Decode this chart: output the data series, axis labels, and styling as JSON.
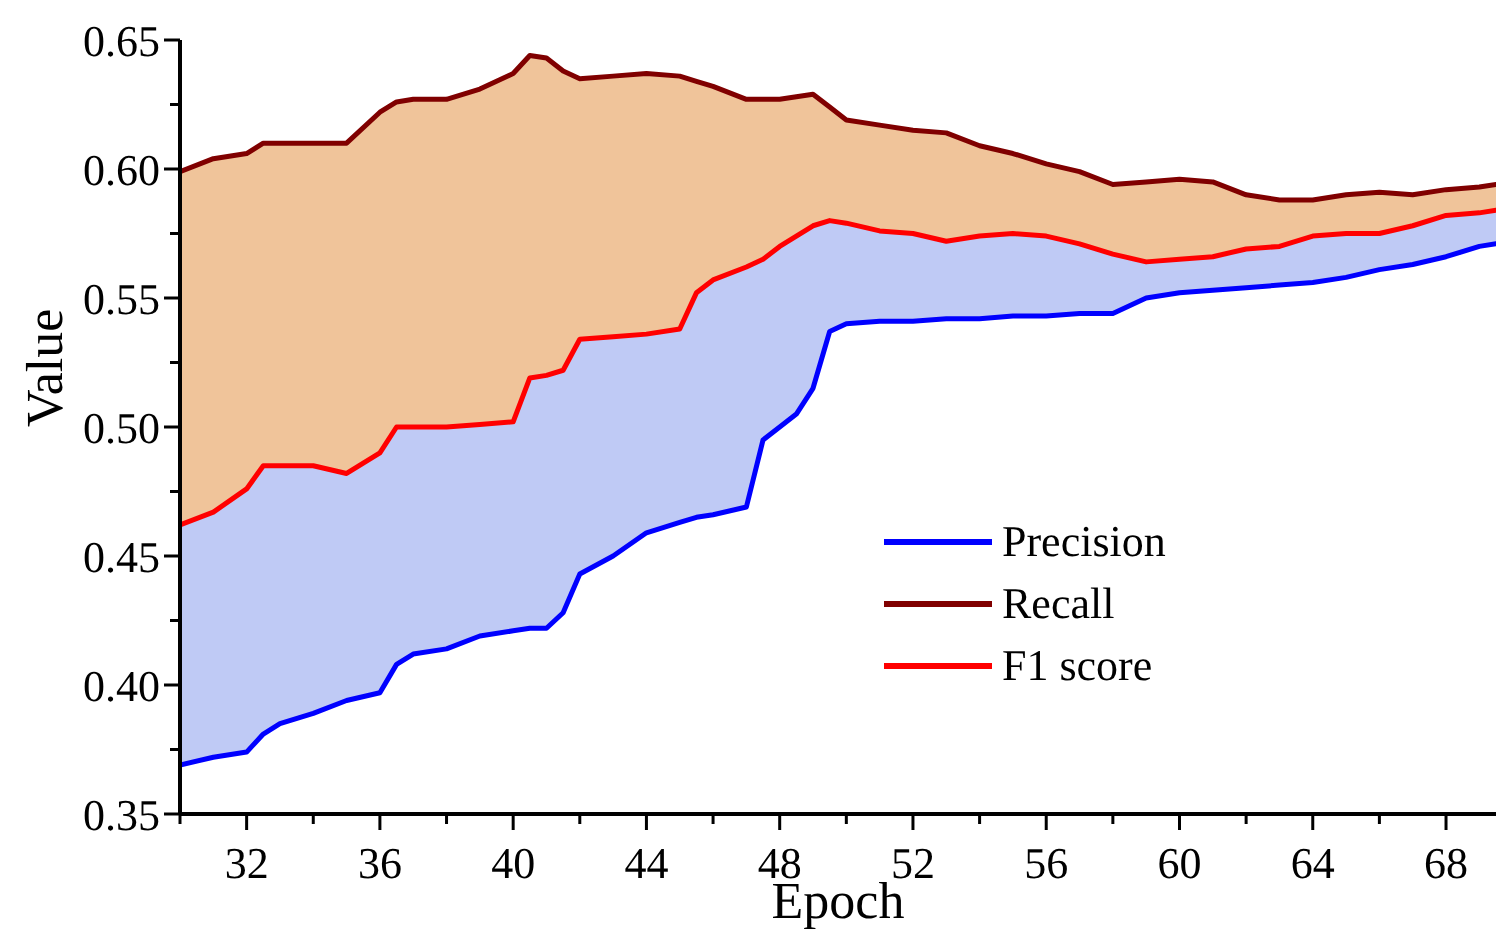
{
  "chart_data": {
    "type": "line",
    "xlabel": "Epoch",
    "ylabel": "Value",
    "x": [
      30,
      31,
      32,
      32.5,
      33,
      34,
      35,
      36,
      36.5,
      37,
      38,
      39,
      40,
      40.5,
      41,
      41.5,
      42,
      43,
      44,
      45,
      45.5,
      46,
      47,
      47.5,
      48,
      48.5,
      49,
      49.5,
      50,
      51,
      52,
      53,
      54,
      55,
      56,
      57,
      58,
      59,
      60,
      61,
      62,
      63,
      64,
      65,
      66,
      67,
      68,
      69,
      69.5
    ],
    "series": [
      {
        "name": "Precision",
        "color": "#0000ff",
        "values": [
          0.369,
          0.372,
          0.374,
          0.381,
          0.385,
          0.389,
          0.394,
          0.397,
          0.408,
          0.412,
          0.414,
          0.419,
          0.421,
          0.422,
          0.422,
          0.428,
          0.443,
          0.45,
          0.459,
          0.463,
          0.465,
          0.466,
          0.469,
          0.495,
          0.5,
          0.505,
          0.515,
          0.537,
          0.54,
          0.541,
          0.541,
          0.542,
          0.542,
          0.543,
          0.543,
          0.544,
          0.544,
          0.55,
          0.552,
          0.553,
          0.554,
          0.555,
          0.556,
          0.558,
          0.561,
          0.563,
          0.566,
          0.57,
          0.571
        ]
      },
      {
        "name": "Recall",
        "color": "#800000",
        "values": [
          0.599,
          0.604,
          0.606,
          0.61,
          0.61,
          0.61,
          0.61,
          0.622,
          0.626,
          0.627,
          0.627,
          0.631,
          0.637,
          0.644,
          0.643,
          0.638,
          0.635,
          0.636,
          0.637,
          0.636,
          0.634,
          0.632,
          0.627,
          0.627,
          0.627,
          0.628,
          0.629,
          0.624,
          0.619,
          0.617,
          0.615,
          0.614,
          0.609,
          0.606,
          0.602,
          0.599,
          0.594,
          0.595,
          0.596,
          0.595,
          0.59,
          0.588,
          0.588,
          0.59,
          0.591,
          0.59,
          0.592,
          0.593,
          0.594
        ],
        "upper": [
          0.599,
          0.604,
          0.606,
          0.61,
          0.61,
          0.61,
          0.61,
          0.622,
          0.626,
          0.627,
          0.627,
          0.631,
          0.637,
          0.644,
          0.643,
          0.638,
          0.635,
          0.636,
          0.637,
          0.636,
          0.634,
          0.632,
          0.627,
          0.627,
          0.627,
          0.628,
          0.629,
          0.624,
          0.619,
          0.617,
          0.615,
          0.614,
          0.609,
          0.606,
          0.602,
          0.599,
          0.594,
          0.595,
          0.596,
          0.595,
          0.59,
          0.588,
          0.588,
          0.59,
          0.591,
          0.59,
          0.592,
          0.593,
          0.594
        ],
        "lower": [
          0.462,
          0.467,
          0.476,
          0.485,
          0.485,
          0.485,
          0.482,
          0.49,
          0.5,
          0.5,
          0.5,
          0.501,
          0.502,
          0.519,
          0.52,
          0.522,
          0.534,
          0.535,
          0.536,
          0.538,
          0.552,
          0.557,
          0.562,
          0.565,
          0.57,
          0.574,
          0.578,
          0.58,
          0.579,
          0.576,
          0.575,
          0.572,
          0.574,
          0.575,
          0.574,
          0.571,
          0.567,
          0.564,
          0.565,
          0.566,
          0.569,
          0.57,
          0.574,
          0.575,
          0.575,
          0.578,
          0.582,
          0.583,
          0.584
        ]
      },
      {
        "name": "F1 score",
        "color": "#ff0000",
        "values": [
          0.462,
          0.467,
          0.476,
          0.485,
          0.485,
          0.485,
          0.482,
          0.49,
          0.5,
          0.5,
          0.5,
          0.501,
          0.502,
          0.519,
          0.52,
          0.522,
          0.534,
          0.535,
          0.536,
          0.538,
          0.552,
          0.557,
          0.562,
          0.565,
          0.57,
          0.574,
          0.578,
          0.58,
          0.579,
          0.576,
          0.575,
          0.572,
          0.574,
          0.575,
          0.574,
          0.571,
          0.567,
          0.564,
          0.565,
          0.566,
          0.569,
          0.57,
          0.574,
          0.575,
          0.575,
          0.578,
          0.582,
          0.583,
          0.584
        ],
        "upper": [
          0.462,
          0.467,
          0.476,
          0.485,
          0.485,
          0.485,
          0.482,
          0.49,
          0.5,
          0.5,
          0.5,
          0.501,
          0.502,
          0.519,
          0.52,
          0.522,
          0.534,
          0.535,
          0.536,
          0.538,
          0.552,
          0.557,
          0.562,
          0.565,
          0.57,
          0.574,
          0.578,
          0.58,
          0.579,
          0.576,
          0.575,
          0.572,
          0.574,
          0.575,
          0.574,
          0.571,
          0.567,
          0.564,
          0.565,
          0.566,
          0.569,
          0.57,
          0.574,
          0.575,
          0.575,
          0.578,
          0.582,
          0.583,
          0.584
        ],
        "lower": [
          0.369,
          0.372,
          0.374,
          0.381,
          0.385,
          0.389,
          0.394,
          0.397,
          0.408,
          0.412,
          0.414,
          0.419,
          0.421,
          0.422,
          0.422,
          0.428,
          0.443,
          0.45,
          0.459,
          0.463,
          0.465,
          0.466,
          0.469,
          0.495,
          0.5,
          0.505,
          0.515,
          0.537,
          0.54,
          0.541,
          0.541,
          0.542,
          0.542,
          0.543,
          0.543,
          0.544,
          0.544,
          0.55,
          0.552,
          0.553,
          0.554,
          0.555,
          0.556,
          0.558,
          0.561,
          0.563,
          0.566,
          0.57,
          0.571
        ]
      }
    ],
    "xlim": [
      30,
      69.5
    ],
    "xticks": [
      {
        "value": 30,
        "label": null
      },
      32,
      {
        "value": 34,
        "label": null
      },
      36,
      {
        "value": 38,
        "label": null
      },
      40,
      {
        "value": 42,
        "label": null
      },
      44,
      {
        "value": 46,
        "label": null
      },
      48,
      {
        "value": 50,
        "label": null
      },
      52,
      {
        "value": 54,
        "label": null
      },
      56,
      {
        "value": 58,
        "label": null
      },
      60,
      {
        "value": 62,
        "label": null
      },
      64,
      {
        "value": 66,
        "label": null
      },
      68
    ],
    "ylim": [
      0.35,
      0.65
    ],
    "yticks": [
      0.35,
      {
        "value": 0.375,
        "label": null
      },
      {
        "value": 0.4,
        "label": "0.40"
      },
      {
        "value": 0.425,
        "label": null
      },
      0.45,
      {
        "value": 0.475,
        "label": null
      },
      {
        "value": 0.5,
        "label": "0.50"
      },
      {
        "value": 0.525,
        "label": null
      },
      0.55,
      {
        "value": 0.575,
        "label": null
      },
      {
        "value": 0.6,
        "label": "0.60"
      },
      {
        "value": 0.625,
        "label": null
      },
      0.65
    ],
    "grid": false,
    "legend": "bottom right"
  }
}
